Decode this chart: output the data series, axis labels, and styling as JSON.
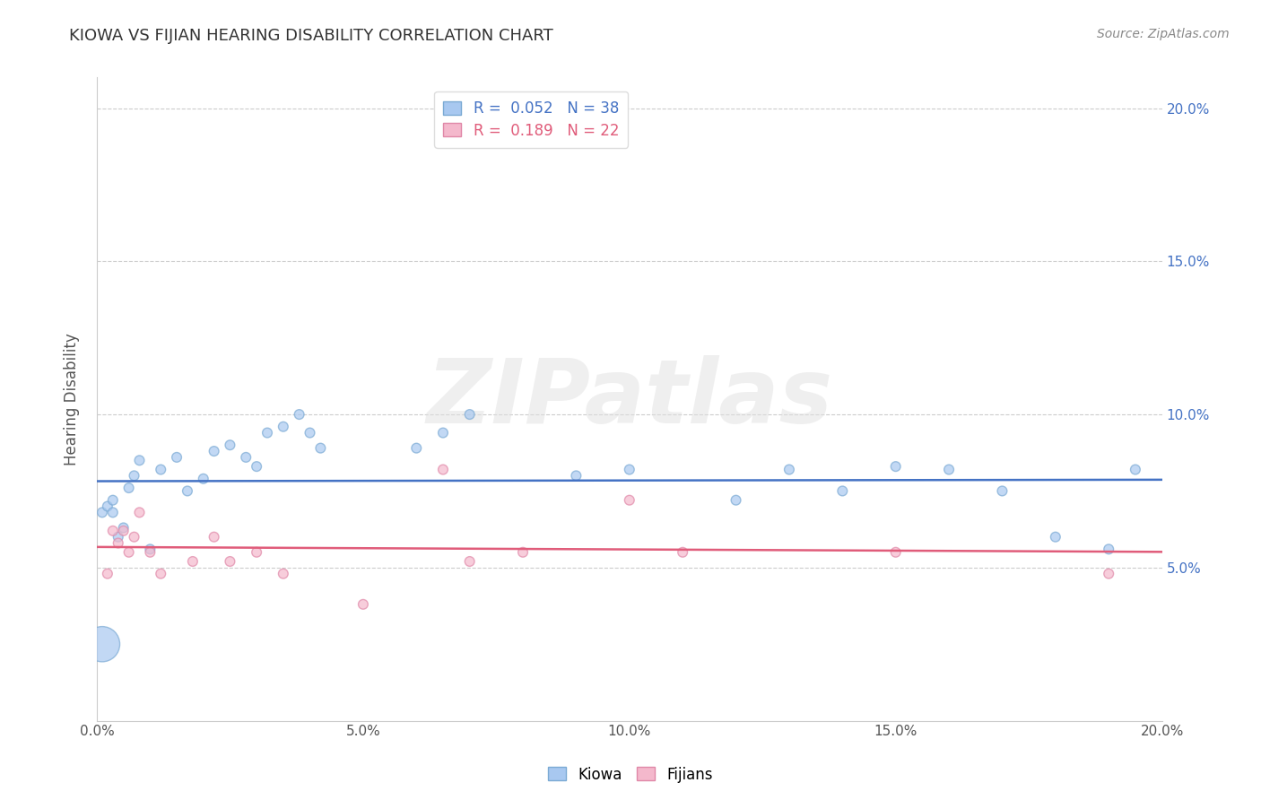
{
  "title": "KIOWA VS FIJIAN HEARING DISABILITY CORRELATION CHART",
  "source": "Source: ZipAtlas.com",
  "xlabel": "",
  "ylabel": "Hearing Disability",
  "xlim": [
    0.0,
    0.2
  ],
  "ylim": [
    0.0,
    0.21
  ],
  "xtick_labels": [
    "0.0%",
    "5.0%",
    "10.0%",
    "15.0%",
    "20.0%"
  ],
  "xtick_vals": [
    0.0,
    0.05,
    0.1,
    0.15,
    0.2
  ],
  "ytick_labels": [
    "5.0%",
    "10.0%",
    "15.0%",
    "20.0%"
  ],
  "ytick_vals": [
    0.05,
    0.1,
    0.15,
    0.2
  ],
  "kiowa_color": "#a8c8f0",
  "fijian_color": "#f4b8cc",
  "kiowa_edge_color": "#7baad4",
  "fijian_edge_color": "#e088a8",
  "kiowa_R": 0.052,
  "kiowa_N": 38,
  "fijian_R": 0.189,
  "fijian_N": 22,
  "kiowa_line_color": "#4472c4",
  "fijian_line_color": "#e05c7a",
  "legend_text_kiowa_color": "#4472c4",
  "legend_text_fijian_color": "#e05c7a",
  "legend_label_kiowa": "Kiowa",
  "legend_label_fijian": "Fijians",
  "watermark": "ZIPatlas",
  "kiowa_x": [
    0.001,
    0.002,
    0.003,
    0.003,
    0.004,
    0.005,
    0.006,
    0.007,
    0.008,
    0.01,
    0.012,
    0.015,
    0.017,
    0.02,
    0.022,
    0.025,
    0.028,
    0.03,
    0.032,
    0.035,
    0.038,
    0.04,
    0.042,
    0.06,
    0.065,
    0.07,
    0.09,
    0.1,
    0.12,
    0.13,
    0.14,
    0.15,
    0.16,
    0.17,
    0.18,
    0.19,
    0.195,
    0.001
  ],
  "kiowa_y": [
    0.068,
    0.07,
    0.072,
    0.068,
    0.06,
    0.063,
    0.076,
    0.08,
    0.085,
    0.056,
    0.082,
    0.086,
    0.075,
    0.079,
    0.088,
    0.09,
    0.086,
    0.083,
    0.094,
    0.096,
    0.1,
    0.094,
    0.089,
    0.089,
    0.094,
    0.1,
    0.08,
    0.082,
    0.072,
    0.082,
    0.075,
    0.083,
    0.082,
    0.075,
    0.06,
    0.056,
    0.082,
    0.025
  ],
  "kiowa_sizes": [
    60,
    60,
    60,
    60,
    60,
    60,
    60,
    60,
    60,
    60,
    60,
    60,
    60,
    60,
    60,
    60,
    60,
    60,
    60,
    60,
    60,
    60,
    60,
    60,
    60,
    60,
    60,
    60,
    60,
    60,
    60,
    60,
    60,
    60,
    60,
    60,
    60,
    800
  ],
  "fijian_x": [
    0.002,
    0.003,
    0.004,
    0.005,
    0.006,
    0.007,
    0.008,
    0.01,
    0.012,
    0.018,
    0.022,
    0.025,
    0.03,
    0.035,
    0.05,
    0.065,
    0.07,
    0.08,
    0.1,
    0.11,
    0.15,
    0.19
  ],
  "fijian_y": [
    0.048,
    0.062,
    0.058,
    0.062,
    0.055,
    0.06,
    0.068,
    0.055,
    0.048,
    0.052,
    0.06,
    0.052,
    0.055,
    0.048,
    0.038,
    0.082,
    0.052,
    0.055,
    0.072,
    0.055,
    0.055,
    0.048
  ],
  "fijian_sizes": [
    60,
    60,
    60,
    60,
    60,
    60,
    60,
    60,
    60,
    60,
    60,
    60,
    60,
    60,
    60,
    60,
    60,
    60,
    60,
    60,
    60,
    60
  ]
}
